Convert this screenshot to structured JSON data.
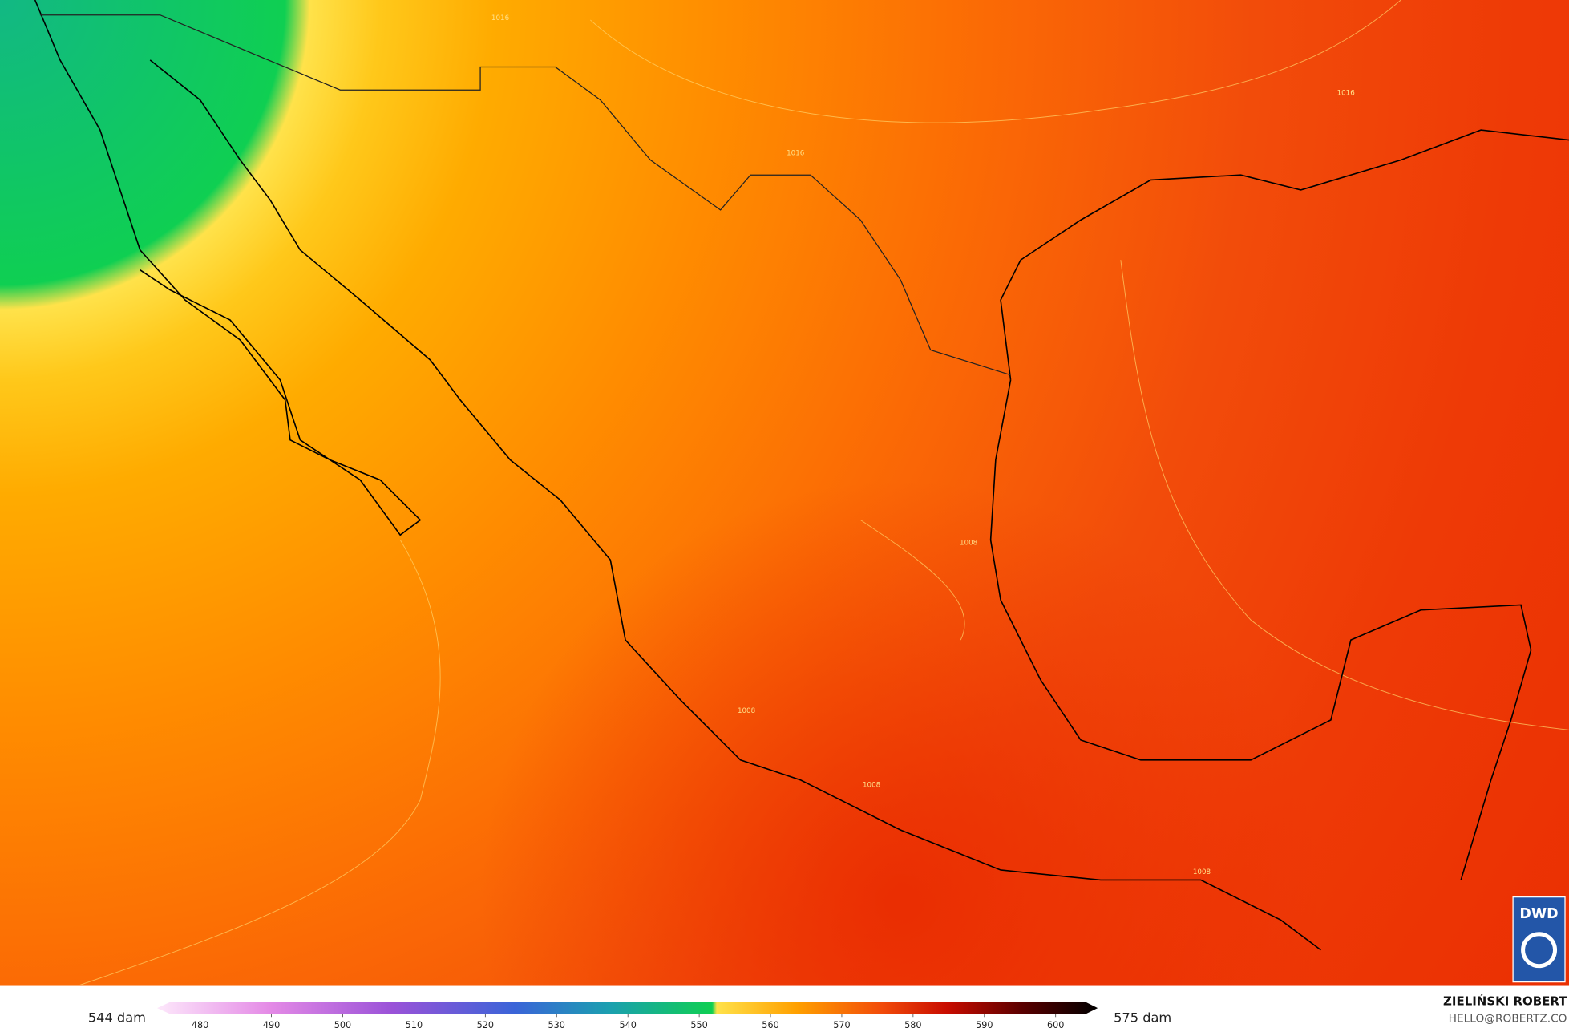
{
  "map": {
    "contour_labels": [
      "1016",
      "1016",
      "1016",
      "1008",
      "1008",
      "1008",
      "1008"
    ]
  },
  "colorbar": {
    "ticks": [
      480,
      490,
      500,
      510,
      520,
      530,
      540,
      550,
      560,
      570,
      580,
      590,
      600
    ],
    "min_label": "544 dam",
    "max_label": "575 dam"
  },
  "credits": {
    "author": "ZIELIŃSKI ROBERT",
    "email": "HELLO@ROBERTZ.CO"
  },
  "logo": "DWD"
}
